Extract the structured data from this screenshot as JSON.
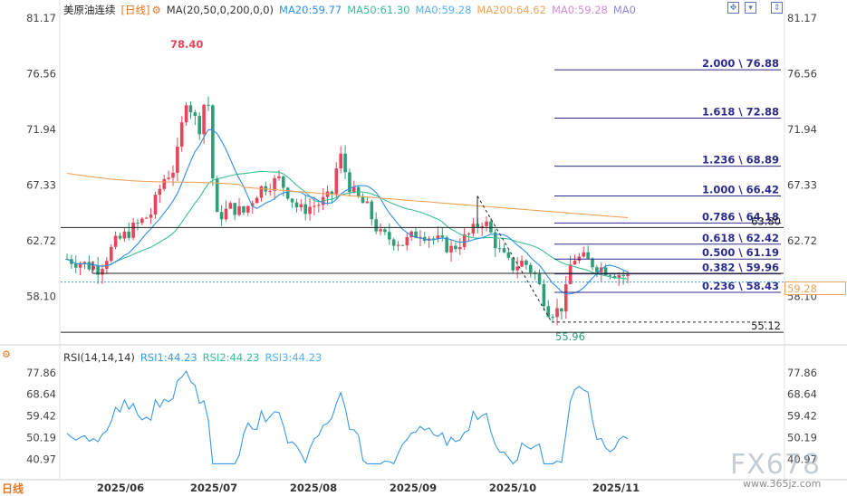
{
  "header": {
    "symbol": "美原油连续",
    "timeframe": "[日线]",
    "ma_params": "MA(20,50,0,200,0,0)",
    "ma20": "MA20:59.77",
    "ma50": "MA50:61.30",
    "ma0a": "MA0:59.28",
    "ma200": "MA200:64.62",
    "ma0b": "MA0:59.28",
    "ma0c": "MA0"
  },
  "rsi_header": {
    "params": "RSI(14,14,14)",
    "rsi1": "RSI1:44.23",
    "rsi2": "RSI2:44.23",
    "rsi3": "RSI3:44.23"
  },
  "footer": {
    "timeframe_label": "日线"
  },
  "watermark": {
    "brand": "FX678",
    "site": "www.365jz.com"
  },
  "colors": {
    "up": "#e8455a",
    "down": "#2f9e78",
    "ma20": "#2f8fe8",
    "ma50": "#3cc08e",
    "ma200": "#f0a35b",
    "fib": "#2b2b8c",
    "rsi": "#3b9ae6"
  },
  "chart_data": [
    {
      "type": "candlestick",
      "title": "美原油连续",
      "x": [
        "2025/06",
        "2025/07",
        "2025/08",
        "2025/09",
        "2025/10",
        "2025/11"
      ],
      "ylim": [
        55.5,
        81.17
      ],
      "y_ticks": [
        "81.17",
        "76.56",
        "71.94",
        "67.33",
        "62.72",
        "58.10"
      ],
      "high_label": "78.40",
      "low_label": "55.96",
      "current_price": "59.28",
      "fibonacci": [
        {
          "label": "2.000 \\ 76.88",
          "value": 76.88
        },
        {
          "label": "1.618 \\ 72.88",
          "value": 72.88
        },
        {
          "label": "1.236 \\ 68.89",
          "value": 68.89
        },
        {
          "label": "1.000 \\ 66.42",
          "value": 66.42
        },
        {
          "label": "0.786 \\ 64.18",
          "value": 64.18
        },
        {
          "label": "0.618 \\ 62.42",
          "value": 62.42
        },
        {
          "label": "0.500 \\ 61.19",
          "value": 61.19
        },
        {
          "label": "0.382 \\ 59.96",
          "value": 59.96
        },
        {
          "label": "0.236 \\ 58.43",
          "value": 58.43
        }
      ],
      "annotations": [
        {
          "label": "63.80",
          "value": 63.8
        },
        {
          "label": "55.12",
          "value": 55.12
        }
      ],
      "moving_averages": [
        {
          "name": "MA20",
          "value": 59.77
        },
        {
          "name": "MA50",
          "value": 61.3
        },
        {
          "name": "MA200",
          "value": 64.62
        }
      ]
    },
    {
      "type": "line",
      "title": "RSI(14,14,14)",
      "ylim": [
        38,
        80.5
      ],
      "y_ticks": [
        "77.86",
        "68.64",
        "59.42",
        "50.19",
        "40.97"
      ],
      "series": [
        {
          "name": "RSI1",
          "last": 44.23
        }
      ]
    }
  ]
}
